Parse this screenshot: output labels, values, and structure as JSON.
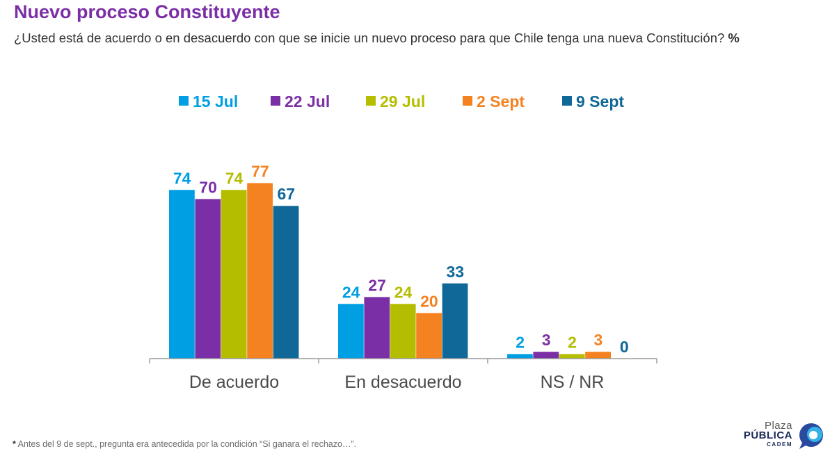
{
  "title": "Nuevo proceso Constituyente",
  "subtitle": "¿Usted está de acuerdo o en desacuerdo con que se inicie un nuevo proceso para que Chile tenga una nueva Constitución?",
  "subtitle_unit": "%",
  "footnote_marker": "*",
  "footnote": " Antes del 9 de sept., pregunta era antecedida por la condición “Si ganara el rechazo…”.",
  "logo": {
    "top": "Plaza",
    "main": "PÚBLICA",
    "sub": "CADEM"
  },
  "chart_data": {
    "type": "bar",
    "categories": [
      "De acuerdo",
      "En desacuerdo",
      "NS / NR"
    ],
    "series": [
      {
        "name": "15 Jul",
        "color": "#009fe3",
        "values": [
          74,
          24,
          2
        ]
      },
      {
        "name": "22 Jul",
        "color": "#7b2fa6",
        "values": [
          70,
          27,
          3
        ]
      },
      {
        "name": "29 Jul",
        "color": "#b5bd00",
        "values": [
          74,
          24,
          2
        ]
      },
      {
        "name": "2 Sept",
        "color": "#f58220",
        "values": [
          77,
          20,
          3
        ]
      },
      {
        "name": "9 Sept",
        "color": "#0f6898",
        "values": [
          67,
          33,
          0
        ]
      }
    ],
    "ylim": [
      0,
      100
    ],
    "legend_position": "top",
    "grid": false
  }
}
